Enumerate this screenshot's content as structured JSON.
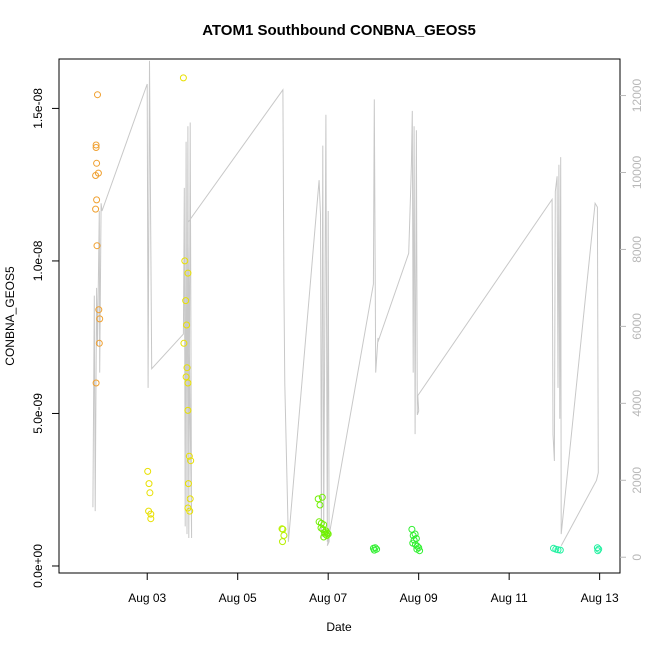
{
  "chart_data": {
    "type": "scatter",
    "title": "ATOM1 Southbound CONBNA_GEOS5",
    "xlabel": "Date",
    "ylabel": "CONBNA_GEOS5",
    "x_ticks": [
      "Aug 03",
      "Aug 05",
      "Aug 07",
      "Aug 09",
      "Aug 11",
      "Aug 13"
    ],
    "x_tick_values": [
      3,
      5,
      7,
      9,
      11,
      13
    ],
    "xlim": [
      1.05,
      13.45
    ],
    "y_ticks": [
      "0.0e+00",
      "5.0e-09",
      "1.0e-08",
      "1.5e-08"
    ],
    "y_tick_values": [
      0,
      5e-09,
      1e-08,
      1.5e-08
    ],
    "ylim": [
      -2.3e-10,
      1.662e-08
    ],
    "y2_ticks": [
      "0",
      "2000",
      "4000",
      "6000",
      "8000",
      "10000",
      "12000"
    ],
    "y2_tick_values": [
      0,
      2000,
      4000,
      6000,
      8000,
      10000,
      12000
    ],
    "y2lim": [
      -410,
      12950
    ],
    "grid": false,
    "colors": {
      "altitude_line": "#c8c8c8",
      "axis": "#000000",
      "right_axis": "#b8b8b8"
    },
    "series": [
      {
        "color": "#f0a030",
        "points": [
          [
            1.9,
            1.545e-08
          ],
          [
            1.87,
            1.38e-08
          ],
          [
            1.87,
            1.372e-08
          ],
          [
            1.88,
            1.32e-08
          ],
          [
            1.86,
            1.28e-08
          ],
          [
            1.92,
            1.288e-08
          ],
          [
            1.88,
            1.2e-08
          ],
          [
            1.86,
            1.17e-08
          ],
          [
            1.89,
            1.05e-08
          ],
          [
            1.93,
            8.4e-09
          ],
          [
            1.95,
            8.1e-09
          ],
          [
            1.94,
            7.3e-09
          ],
          [
            1.87,
            6e-09
          ]
        ]
      },
      {
        "color": "#e8e000",
        "points": [
          [
            3.8,
            1.6e-08
          ],
          [
            3.01,
            3.1e-09
          ],
          [
            3.04,
            2.7e-09
          ],
          [
            3.06,
            2.4e-09
          ],
          [
            3.03,
            1.8e-09
          ],
          [
            3.08,
            1.7e-09
          ],
          [
            3.08,
            1.55e-09
          ],
          [
            3.83,
            1e-08
          ],
          [
            3.9,
            9.6e-09
          ],
          [
            3.85,
            8.7e-09
          ],
          [
            3.87,
            7.9e-09
          ],
          [
            3.81,
            7.3e-09
          ],
          [
            3.88,
            6.5e-09
          ],
          [
            3.86,
            6.2e-09
          ],
          [
            3.9,
            6e-09
          ],
          [
            3.9,
            5.1e-09
          ],
          [
            3.93,
            3.6e-09
          ],
          [
            3.96,
            3.45e-09
          ],
          [
            3.91,
            2.7e-09
          ],
          [
            3.95,
            2.2e-09
          ],
          [
            3.9,
            1.9e-09
          ],
          [
            3.94,
            1.8e-09
          ]
        ]
      },
      {
        "color": "#b8f000",
        "points": [
          [
            5.98,
            1.22e-09
          ],
          [
            6.0,
            1.2e-09
          ],
          [
            6.02,
            1e-09
          ],
          [
            5.99,
            8e-10
          ]
        ]
      },
      {
        "color": "#70f000",
        "points": [
          [
            6.78,
            2.2e-09
          ],
          [
            6.87,
            2.25e-09
          ],
          [
            6.82,
            2e-09
          ],
          [
            6.8,
            1.45e-09
          ],
          [
            6.85,
            1.4e-09
          ],
          [
            6.9,
            1.35e-09
          ],
          [
            6.84,
            1.25e-09
          ],
          [
            6.88,
            1.2e-09
          ],
          [
            6.95,
            1.15e-09
          ],
          [
            6.92,
            1.1e-09
          ],
          [
            6.98,
            1.08e-09
          ],
          [
            6.93,
            1.05e-09
          ],
          [
            6.97,
            1e-09
          ],
          [
            6.9,
            9.5e-10
          ],
          [
            7.0,
            1.05e-09
          ]
        ]
      },
      {
        "color": "#30f030",
        "points": [
          [
            8.0,
            5.8e-10
          ],
          [
            8.04,
            6e-10
          ],
          [
            8.07,
            5.5e-10
          ],
          [
            8.02,
            5.2e-10
          ],
          [
            8.85,
            1.2e-09
          ],
          [
            8.92,
            1.05e-09
          ],
          [
            8.88,
            1e-09
          ],
          [
            8.95,
            9e-10
          ],
          [
            8.9,
            8.5e-10
          ],
          [
            8.87,
            7.5e-10
          ],
          [
            8.93,
            7e-10
          ],
          [
            8.97,
            6.5e-10
          ],
          [
            9.0,
            6e-10
          ],
          [
            8.96,
            5.5e-10
          ],
          [
            9.02,
            5e-10
          ]
        ]
      },
      {
        "color": "#20f0a0",
        "points": [
          [
            11.98,
            5.8e-10
          ],
          [
            12.03,
            5.5e-10
          ],
          [
            12.08,
            5.3e-10
          ],
          [
            12.13,
            5.2e-10
          ],
          [
            12.95,
            6e-10
          ],
          [
            12.98,
            5.5e-10
          ],
          [
            12.96,
            5e-10
          ]
        ]
      }
    ],
    "altitude_line": [
      [
        1.8,
        1300
      ],
      [
        1.83,
        6800
      ],
      [
        1.85,
        1200
      ],
      [
        1.88,
        7000
      ],
      [
        1.9,
        5500
      ],
      [
        1.94,
        9000
      ],
      [
        1.95,
        4800
      ],
      [
        1.98,
        9200
      ],
      [
        2.0,
        9000
      ],
      [
        3.0,
        12300
      ],
      [
        3.02,
        4400
      ],
      [
        3.05,
        12900
      ],
      [
        3.1,
        4900
      ],
      [
        3.8,
        5800
      ],
      [
        3.82,
        9600
      ],
      [
        3.84,
        800
      ],
      [
        3.86,
        10800
      ],
      [
        3.88,
        600
      ],
      [
        3.9,
        11200
      ],
      [
        3.92,
        500
      ],
      [
        3.95,
        11300
      ],
      [
        3.98,
        500
      ],
      [
        3.9,
        8700
      ],
      [
        6.0,
        12150
      ],
      [
        6.02,
        7100
      ],
      [
        6.04,
        4500
      ],
      [
        6.12,
        400
      ],
      [
        6.8,
        9800
      ],
      [
        6.83,
        8900
      ],
      [
        6.85,
        500
      ],
      [
        6.88,
        10700
      ],
      [
        6.9,
        600
      ],
      [
        6.95,
        11500
      ],
      [
        6.98,
        400
      ],
      [
        7.0,
        9000
      ],
      [
        7.02,
        400
      ],
      [
        6.98,
        300
      ],
      [
        8.0,
        7100
      ],
      [
        8.02,
        11900
      ],
      [
        8.05,
        4800
      ],
      [
        8.1,
        5700
      ],
      [
        8.1,
        5600
      ],
      [
        8.78,
        7900
      ],
      [
        8.82,
        9400
      ],
      [
        8.84,
        10200
      ],
      [
        8.86,
        11600
      ],
      [
        8.88,
        4800
      ],
      [
        8.9,
        11200
      ],
      [
        8.92,
        3200
      ],
      [
        8.95,
        11100
      ],
      [
        8.97,
        3700
      ],
      [
        9.0,
        3800
      ],
      [
        8.98,
        4200
      ],
      [
        11.95,
        9300
      ],
      [
        11.97,
        3200
      ],
      [
        12.0,
        2500
      ],
      [
        12.02,
        9500
      ],
      [
        12.06,
        9900
      ],
      [
        12.08,
        4400
      ],
      [
        12.1,
        10200
      ],
      [
        12.12,
        3600
      ],
      [
        12.14,
        10400
      ],
      [
        12.15,
        600
      ],
      [
        12.9,
        9200
      ],
      [
        12.95,
        9100
      ],
      [
        12.97,
        2200
      ],
      [
        12.93,
        2000
      ],
      [
        12.15,
        300
      ]
    ]
  }
}
